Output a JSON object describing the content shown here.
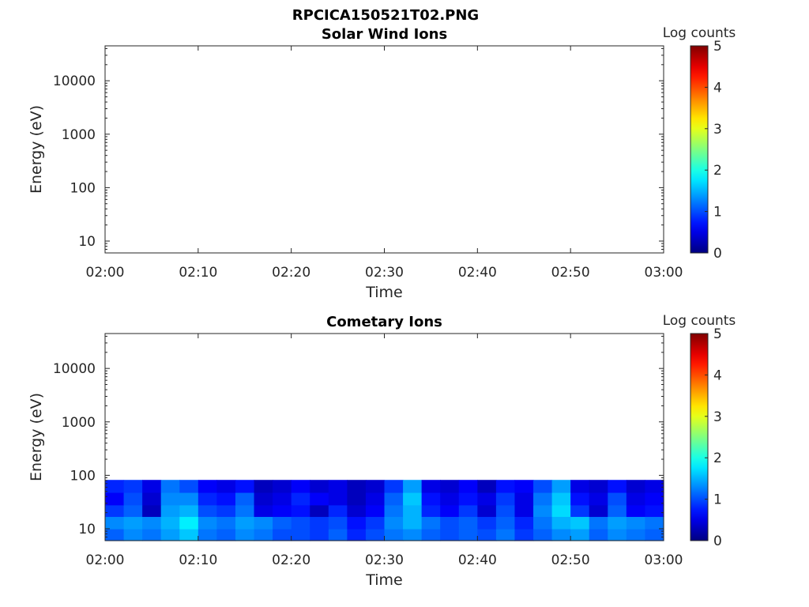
{
  "figure": {
    "title": "RPCICA150521T02.PNG"
  },
  "chart_data": [
    {
      "type": "heatmap",
      "title": "Solar Wind Ions",
      "xlabel": "Time",
      "ylabel": "Energy (eV)",
      "x_ticks": [
        "02:00",
        "02:10",
        "02:20",
        "02:30",
        "02:40",
        "02:50",
        "03:00"
      ],
      "xlim": [
        "02:00",
        "03:00"
      ],
      "y_scale": "log",
      "y_ticks": [
        10,
        100,
        1000,
        10000
      ],
      "y_tick_labels": [
        "10",
        "100",
        "1000",
        "10000"
      ],
      "ylim": [
        6,
        45000
      ],
      "colorbar": {
        "label": "Log counts",
        "ticks": [
          "0",
          "1",
          "2",
          "3",
          "4",
          "5"
        ],
        "range": [
          0,
          5
        ],
        "colormap": "jet"
      },
      "data_present": false,
      "cells": []
    },
    {
      "type": "heatmap",
      "title": "Cometary Ions",
      "xlabel": "Time",
      "ylabel": "Energy (eV)",
      "x_ticks": [
        "02:00",
        "02:10",
        "02:20",
        "02:30",
        "02:40",
        "02:50",
        "03:00"
      ],
      "xlim": [
        "02:00",
        "03:00"
      ],
      "y_scale": "log",
      "y_ticks": [
        10,
        100,
        1000,
        10000
      ],
      "y_tick_labels": [
        "10",
        "100",
        "1000",
        "10000"
      ],
      "ylim": [
        6,
        45000
      ],
      "colorbar": {
        "label": "Log counts",
        "ticks": [
          "0",
          "1",
          "2",
          "3",
          "4",
          "5"
        ],
        "range": [
          0,
          5
        ],
        "colormap": "jet"
      },
      "data_present": true,
      "energy_bands": [
        [
          6,
          10
        ],
        [
          10,
          17
        ],
        [
          17,
          28
        ],
        [
          28,
          48
        ],
        [
          48,
          82
        ]
      ],
      "time_bins": [
        "02:00",
        "02:02",
        "02:04",
        "02:06",
        "02:08",
        "02:10",
        "02:12",
        "02:14",
        "02:16",
        "02:18",
        "02:20",
        "02:22",
        "02:24",
        "02:26",
        "02:28",
        "02:30",
        "02:32",
        "02:34",
        "02:36",
        "02:38",
        "02:40",
        "02:42",
        "02:44",
        "02:46",
        "02:48",
        "02:50",
        "02:52",
        "02:54",
        "02:56",
        "02:58"
      ],
      "log_counts": [
        [
          1.1,
          1.3,
          1.2,
          1.4,
          1.6,
          1.2,
          1.1,
          1.3,
          1.2,
          1.0,
          1.0,
          0.9,
          1.1,
          0.8,
          1.0,
          1.2,
          1.3,
          1.1,
          1.0,
          1.1,
          1.0,
          1.2,
          0.9,
          1.1,
          1.3,
          1.4,
          1.1,
          1.3,
          1.2,
          1.1
        ],
        [
          1.3,
          1.4,
          1.3,
          1.5,
          1.8,
          1.3,
          1.2,
          1.4,
          1.3,
          1.1,
          1.0,
          0.9,
          1.0,
          0.7,
          0.9,
          1.3,
          1.5,
          1.2,
          1.0,
          1.1,
          0.9,
          1.1,
          0.8,
          1.2,
          1.5,
          1.6,
          1.2,
          1.4,
          1.3,
          1.2
        ],
        [
          0.9,
          1.1,
          0.3,
          1.4,
          1.5,
          1.0,
          0.9,
          1.2,
          0.5,
          0.6,
          0.7,
          0.3,
          0.8,
          0.4,
          0.6,
          1.2,
          1.5,
          0.8,
          0.6,
          0.9,
          0.4,
          1.0,
          0.5,
          1.3,
          1.7,
          0.9,
          0.4,
          1.1,
          0.6,
          0.7
        ],
        [
          0.6,
          1.0,
          0.4,
          1.3,
          1.3,
          0.8,
          0.7,
          1.1,
          0.4,
          0.5,
          0.8,
          0.6,
          0.5,
          0.3,
          0.5,
          1.1,
          1.6,
          0.7,
          0.5,
          0.7,
          0.5,
          0.9,
          0.5,
          1.2,
          1.6,
          0.7,
          0.5,
          1.0,
          0.5,
          0.6
        ],
        [
          0.8,
          0.9,
          0.5,
          1.2,
          1.0,
          0.6,
          0.5,
          0.7,
          0.3,
          0.4,
          0.6,
          0.4,
          0.5,
          0.3,
          0.4,
          0.9,
          1.4,
          0.5,
          0.4,
          0.6,
          0.3,
          0.7,
          0.6,
          1.0,
          1.4,
          0.5,
          0.4,
          0.7,
          0.4,
          0.5
        ]
      ]
    }
  ]
}
